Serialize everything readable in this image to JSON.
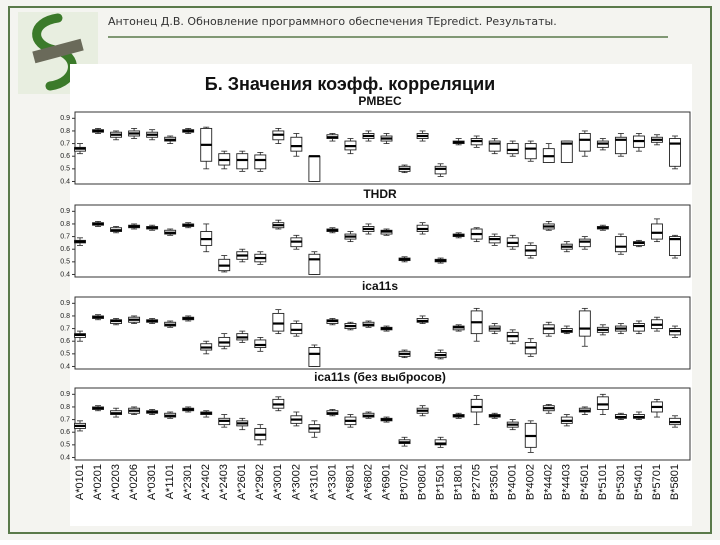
{
  "header": {
    "title": "Антонец Д.В. Обновление программного обеспечения TEpredict. Результаты."
  },
  "figure_title": "Б. Значения коэфф. корреляции",
  "chart_data": [
    {
      "type": "box",
      "title": "PMBEC",
      "ylim": [
        0.38,
        0.95
      ],
      "yticks": [
        0.4,
        0.5,
        0.6,
        0.7,
        0.8,
        0.9
      ],
      "low": [
        0.62,
        0.78,
        0.73,
        0.74,
        0.73,
        0.7,
        0.78,
        0.5,
        0.5,
        0.48,
        0.48,
        0.7,
        0.6,
        0.4,
        0.72,
        0.62,
        0.72,
        0.7,
        0.47,
        0.72,
        0.44,
        0.69,
        0.67,
        0.62,
        0.6,
        0.56,
        0.55,
        0.55,
        0.6,
        0.65,
        0.6,
        0.64,
        0.69,
        0.5
      ],
      "q1": [
        0.64,
        0.79,
        0.75,
        0.76,
        0.75,
        0.72,
        0.79,
        0.56,
        0.53,
        0.5,
        0.5,
        0.73,
        0.64,
        0.4,
        0.74,
        0.65,
        0.74,
        0.72,
        0.48,
        0.74,
        0.46,
        0.7,
        0.69,
        0.64,
        0.62,
        0.58,
        0.55,
        0.55,
        0.64,
        0.67,
        0.62,
        0.67,
        0.71,
        0.52
      ],
      "median": [
        0.66,
        0.8,
        0.77,
        0.78,
        0.77,
        0.73,
        0.8,
        0.69,
        0.57,
        0.57,
        0.57,
        0.77,
        0.68,
        0.6,
        0.75,
        0.68,
        0.76,
        0.74,
        0.5,
        0.76,
        0.5,
        0.71,
        0.72,
        0.7,
        0.65,
        0.66,
        0.6,
        0.7,
        0.73,
        0.7,
        0.73,
        0.72,
        0.73,
        0.7
      ],
      "q3": [
        0.67,
        0.81,
        0.79,
        0.8,
        0.79,
        0.75,
        0.81,
        0.82,
        0.62,
        0.62,
        0.61,
        0.8,
        0.75,
        0.6,
        0.77,
        0.72,
        0.78,
        0.76,
        0.52,
        0.78,
        0.52,
        0.72,
        0.74,
        0.72,
        0.7,
        0.7,
        0.66,
        0.72,
        0.78,
        0.72,
        0.75,
        0.76,
        0.75,
        0.74
      ],
      "high": [
        0.7,
        0.82,
        0.8,
        0.82,
        0.81,
        0.76,
        0.82,
        0.83,
        0.64,
        0.64,
        0.63,
        0.82,
        0.78,
        0.6,
        0.78,
        0.74,
        0.8,
        0.78,
        0.53,
        0.8,
        0.54,
        0.74,
        0.76,
        0.74,
        0.72,
        0.72,
        0.7,
        0.72,
        0.8,
        0.74,
        0.78,
        0.78,
        0.77,
        0.76
      ]
    },
    {
      "type": "box",
      "title": "THDR",
      "ylim": [
        0.38,
        0.95
      ],
      "yticks": [
        0.4,
        0.5,
        0.6,
        0.7,
        0.8,
        0.9
      ],
      "low": [
        0.63,
        0.78,
        0.73,
        0.76,
        0.75,
        0.71,
        0.77,
        0.58,
        0.42,
        0.5,
        0.48,
        0.76,
        0.6,
        0.4,
        0.73,
        0.66,
        0.72,
        0.71,
        0.5,
        0.72,
        0.49,
        0.69,
        0.66,
        0.63,
        0.6,
        0.53,
        0.75,
        0.58,
        0.6,
        0.75,
        0.56,
        0.62,
        0.66,
        0.53
      ],
      "q1": [
        0.65,
        0.79,
        0.74,
        0.77,
        0.76,
        0.72,
        0.78,
        0.63,
        0.43,
        0.52,
        0.5,
        0.77,
        0.62,
        0.4,
        0.74,
        0.68,
        0.74,
        0.72,
        0.51,
        0.74,
        0.5,
        0.7,
        0.68,
        0.65,
        0.62,
        0.55,
        0.76,
        0.6,
        0.62,
        0.76,
        0.58,
        0.63,
        0.68,
        0.55
      ],
      "median": [
        0.66,
        0.8,
        0.75,
        0.78,
        0.77,
        0.73,
        0.79,
        0.68,
        0.47,
        0.55,
        0.53,
        0.79,
        0.66,
        0.52,
        0.75,
        0.7,
        0.76,
        0.74,
        0.52,
        0.76,
        0.51,
        0.71,
        0.72,
        0.68,
        0.65,
        0.59,
        0.78,
        0.62,
        0.66,
        0.77,
        0.62,
        0.65,
        0.73,
        0.68
      ],
      "q3": [
        0.67,
        0.81,
        0.77,
        0.79,
        0.78,
        0.75,
        0.8,
        0.74,
        0.52,
        0.58,
        0.56,
        0.81,
        0.69,
        0.56,
        0.76,
        0.72,
        0.78,
        0.75,
        0.53,
        0.79,
        0.52,
        0.72,
        0.76,
        0.7,
        0.69,
        0.63,
        0.8,
        0.64,
        0.68,
        0.78,
        0.7,
        0.66,
        0.8,
        0.7
      ],
      "high": [
        0.69,
        0.82,
        0.78,
        0.8,
        0.79,
        0.76,
        0.81,
        0.8,
        0.55,
        0.6,
        0.58,
        0.83,
        0.71,
        0.58,
        0.77,
        0.74,
        0.8,
        0.76,
        0.54,
        0.81,
        0.53,
        0.73,
        0.77,
        0.72,
        0.71,
        0.65,
        0.82,
        0.66,
        0.7,
        0.79,
        0.72,
        0.67,
        0.84,
        0.71
      ]
    },
    {
      "type": "box",
      "title": "ica11s",
      "ylim": [
        0.38,
        0.95
      ],
      "yticks": [
        0.4,
        0.5,
        0.6,
        0.7,
        0.8,
        0.9
      ],
      "low": [
        0.6,
        0.77,
        0.73,
        0.74,
        0.74,
        0.71,
        0.76,
        0.5,
        0.54,
        0.59,
        0.52,
        0.66,
        0.64,
        0.4,
        0.73,
        0.69,
        0.71,
        0.68,
        0.47,
        0.74,
        0.46,
        0.68,
        0.6,
        0.66,
        0.58,
        0.48,
        0.64,
        0.66,
        0.56,
        0.65,
        0.66,
        0.66,
        0.68,
        0.63
      ],
      "q1": [
        0.63,
        0.78,
        0.74,
        0.75,
        0.75,
        0.72,
        0.77,
        0.53,
        0.56,
        0.61,
        0.55,
        0.68,
        0.66,
        0.4,
        0.74,
        0.7,
        0.72,
        0.69,
        0.48,
        0.75,
        0.47,
        0.69,
        0.66,
        0.68,
        0.6,
        0.5,
        0.66,
        0.67,
        0.64,
        0.67,
        0.68,
        0.68,
        0.7,
        0.65
      ],
      "median": [
        0.65,
        0.79,
        0.76,
        0.77,
        0.76,
        0.73,
        0.78,
        0.55,
        0.59,
        0.63,
        0.57,
        0.74,
        0.69,
        0.5,
        0.76,
        0.72,
        0.73,
        0.7,
        0.5,
        0.76,
        0.49,
        0.71,
        0.75,
        0.7,
        0.64,
        0.55,
        0.7,
        0.68,
        0.7,
        0.69,
        0.7,
        0.72,
        0.73,
        0.68
      ],
      "q3": [
        0.66,
        0.8,
        0.77,
        0.79,
        0.77,
        0.75,
        0.79,
        0.58,
        0.63,
        0.66,
        0.61,
        0.82,
        0.74,
        0.55,
        0.77,
        0.74,
        0.75,
        0.71,
        0.52,
        0.78,
        0.51,
        0.72,
        0.84,
        0.72,
        0.67,
        0.59,
        0.73,
        0.7,
        0.84,
        0.71,
        0.72,
        0.74,
        0.77,
        0.7
      ],
      "high": [
        0.68,
        0.81,
        0.78,
        0.8,
        0.78,
        0.76,
        0.8,
        0.6,
        0.66,
        0.68,
        0.63,
        0.85,
        0.76,
        0.57,
        0.78,
        0.75,
        0.76,
        0.72,
        0.53,
        0.8,
        0.53,
        0.73,
        0.86,
        0.74,
        0.69,
        0.62,
        0.75,
        0.72,
        0.86,
        0.73,
        0.74,
        0.76,
        0.79,
        0.72
      ]
    },
    {
      "type": "box",
      "title": "ica11s (без выбросов)",
      "ylim": [
        0.38,
        0.95
      ],
      "yticks": [
        0.4,
        0.5,
        0.6,
        0.7,
        0.8,
        0.9
      ],
      "categories": [
        "A*0101",
        "A*0201",
        "A*0203",
        "A*0206",
        "A*0301",
        "A*1101",
        "A*2301",
        "A*2402",
        "A*2403",
        "A*2601",
        "A*2902",
        "A*3001",
        "A*3002",
        "A*3101",
        "A*3301",
        "A*6801",
        "A*6802",
        "A*6901",
        "B*0702",
        "B*0801",
        "B*1501",
        "B*1801",
        "B*2705",
        "B*3501",
        "B*4001",
        "B*4002",
        "B*4402",
        "B*4403",
        "B*4501",
        "B*5101",
        "B*5301",
        "B*5401",
        "B*5701",
        "B*5801"
      ],
      "low": [
        0.61,
        0.77,
        0.72,
        0.74,
        0.74,
        0.71,
        0.76,
        0.72,
        0.64,
        0.62,
        0.5,
        0.77,
        0.65,
        0.56,
        0.73,
        0.64,
        0.71,
        0.68,
        0.49,
        0.73,
        0.48,
        0.71,
        0.66,
        0.71,
        0.62,
        0.44,
        0.75,
        0.65,
        0.74,
        0.74,
        0.7,
        0.7,
        0.72,
        0.64
      ],
      "q1": [
        0.63,
        0.78,
        0.74,
        0.75,
        0.75,
        0.72,
        0.77,
        0.74,
        0.66,
        0.65,
        0.54,
        0.79,
        0.67,
        0.6,
        0.74,
        0.66,
        0.72,
        0.69,
        0.51,
        0.75,
        0.5,
        0.72,
        0.76,
        0.72,
        0.64,
        0.48,
        0.77,
        0.67,
        0.76,
        0.78,
        0.71,
        0.71,
        0.76,
        0.66
      ],
      "median": [
        0.65,
        0.79,
        0.75,
        0.77,
        0.76,
        0.73,
        0.78,
        0.75,
        0.69,
        0.67,
        0.58,
        0.82,
        0.7,
        0.63,
        0.75,
        0.69,
        0.73,
        0.7,
        0.52,
        0.77,
        0.51,
        0.73,
        0.8,
        0.73,
        0.66,
        0.57,
        0.79,
        0.69,
        0.77,
        0.82,
        0.72,
        0.72,
        0.8,
        0.68
      ],
      "q3": [
        0.67,
        0.8,
        0.77,
        0.79,
        0.77,
        0.75,
        0.79,
        0.76,
        0.71,
        0.69,
        0.63,
        0.86,
        0.73,
        0.66,
        0.77,
        0.72,
        0.75,
        0.71,
        0.54,
        0.79,
        0.54,
        0.74,
        0.86,
        0.74,
        0.68,
        0.67,
        0.81,
        0.72,
        0.79,
        0.88,
        0.74,
        0.74,
        0.84,
        0.71
      ],
      "high": [
        0.69,
        0.81,
        0.79,
        0.8,
        0.78,
        0.76,
        0.8,
        0.77,
        0.74,
        0.71,
        0.66,
        0.88,
        0.76,
        0.69,
        0.78,
        0.74,
        0.76,
        0.72,
        0.56,
        0.81,
        0.56,
        0.75,
        0.89,
        0.75,
        0.7,
        0.69,
        0.82,
        0.74,
        0.8,
        0.9,
        0.75,
        0.76,
        0.86,
        0.73
      ]
    }
  ]
}
